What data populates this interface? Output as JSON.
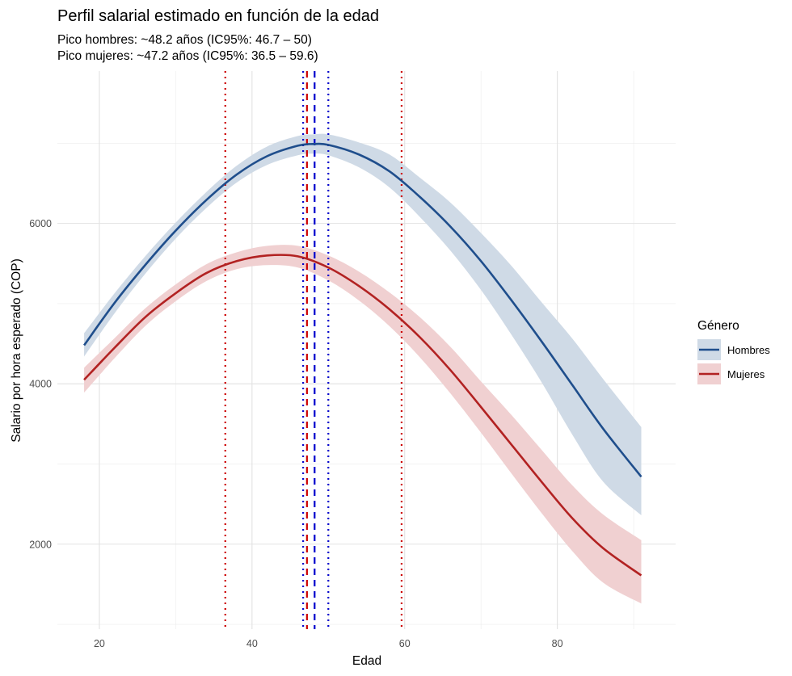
{
  "chart_data": {
    "type": "line",
    "title": "Perfil salarial estimado en función de la edad",
    "subtitle_lines": [
      "Pico hombres: ~48.2 años (IC95%: 46.7 – 50)",
      "Pico mujeres: ~47.2 años (IC95%: 36.5 – 59.6)"
    ],
    "xlabel": "Edad",
    "ylabel": "Salario por hora esperado (COP)",
    "xlim": [
      14.5,
      95.5
    ],
    "ylim": [
      940,
      7900
    ],
    "x_ticks": [
      20,
      40,
      60,
      80
    ],
    "y_ticks": [
      2000,
      4000,
      6000
    ],
    "x_minor": [
      30,
      50,
      70,
      90
    ],
    "y_minor": [
      1000,
      3000,
      5000,
      7000
    ],
    "grid": true,
    "legend": {
      "title": "Género",
      "position": "right",
      "items": [
        {
          "label": "Hombres",
          "color": "#1f4e8c",
          "fill": "#cfdae6"
        },
        {
          "label": "Mujeres",
          "color": "#b22222",
          "fill": "#f0d0d1"
        }
      ]
    },
    "series": [
      {
        "name": "Hombres",
        "color": "#1f4e8c",
        "band_color": "#cfdae6",
        "x": [
          18,
          22,
          26,
          30,
          34,
          38,
          42,
          46,
          48,
          50,
          54,
          58,
          62,
          66,
          70,
          74,
          78,
          82,
          86,
          91
        ],
        "y": [
          4480,
          5010,
          5480,
          5910,
          6290,
          6610,
          6840,
          6970,
          6990,
          6980,
          6860,
          6650,
          6330,
          5960,
          5530,
          5040,
          4520,
          3980,
          3440,
          2840
        ],
        "lower": [
          4340,
          4880,
          5370,
          5810,
          6190,
          6510,
          6730,
          6850,
          6870,
          6850,
          6700,
          6450,
          6080,
          5660,
          5170,
          4610,
          4010,
          3360,
          2780,
          2360
        ],
        "upper": [
          4630,
          5130,
          5590,
          6010,
          6390,
          6720,
          6960,
          7090,
          7110,
          7110,
          7010,
          6860,
          6570,
          6260,
          5880,
          5470,
          5010,
          4560,
          4060,
          3460
        ]
      },
      {
        "name": "Mujeres",
        "color": "#b22222",
        "band_color": "#f0d0d1",
        "x": [
          18,
          22,
          26,
          30,
          34,
          38,
          42,
          46,
          50,
          54,
          58,
          62,
          66,
          70,
          74,
          78,
          82,
          86,
          91
        ],
        "y": [
          4050,
          4450,
          4830,
          5130,
          5380,
          5530,
          5600,
          5590,
          5450,
          5220,
          4930,
          4580,
          4170,
          3710,
          3240,
          2770,
          2320,
          1950,
          1610
        ],
        "lower": [
          3890,
          4320,
          4720,
          5030,
          5280,
          5430,
          5480,
          5450,
          5290,
          5040,
          4720,
          4330,
          3880,
          3390,
          2880,
          2380,
          1910,
          1520,
          1260
        ],
        "upper": [
          4200,
          4570,
          4940,
          5240,
          5490,
          5640,
          5720,
          5720,
          5600,
          5400,
          5140,
          4830,
          4460,
          4030,
          3610,
          3170,
          2730,
          2370,
          2050
        ]
      }
    ],
    "vlines": [
      {
        "x": 48.2,
        "color": "#0000cc",
        "style": "dashed"
      },
      {
        "x": 46.7,
        "color": "#0000cc",
        "style": "dotted"
      },
      {
        "x": 50.0,
        "color": "#0000cc",
        "style": "dotted"
      },
      {
        "x": 47.2,
        "color": "#cc0000",
        "style": "dashed"
      },
      {
        "x": 36.5,
        "color": "#cc0000",
        "style": "dotted"
      },
      {
        "x": 59.6,
        "color": "#cc0000",
        "style": "dotted"
      }
    ]
  }
}
